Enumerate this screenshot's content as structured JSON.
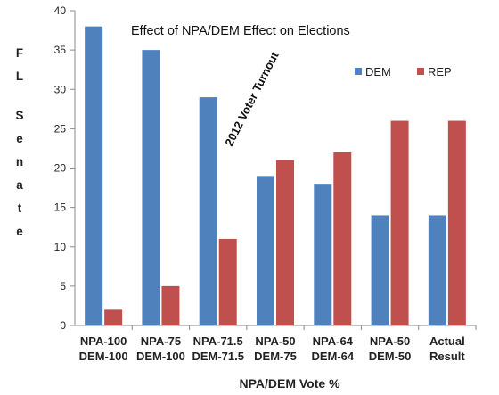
{
  "chart_data": {
    "type": "bar",
    "title": "Effect of NPA/DEM Effect on Elections",
    "xlabel": "NPA/DEM Vote %",
    "ylabel": "FL Senate",
    "ylim": [
      0,
      40
    ],
    "yticks": [
      "0",
      "5",
      "10",
      "15",
      "20",
      "25",
      "30",
      "35",
      "40"
    ],
    "categories": [
      [
        "NPA-100",
        "DEM-100"
      ],
      [
        "NPA-75",
        "DEM-100"
      ],
      [
        "NPA-71.5",
        "DEM-71.5"
      ],
      [
        "NPA-50",
        "DEM-75"
      ],
      [
        "NPA-64",
        "DEM-64"
      ],
      [
        "NPA-50",
        "DEM-50"
      ],
      [
        "Actual",
        "Result"
      ]
    ],
    "series": [
      {
        "name": "DEM",
        "color": "#4f81bd",
        "values": [
          38,
          35,
          29,
          19,
          18,
          14,
          14
        ]
      },
      {
        "name": "REP",
        "color": "#c0504d",
        "values": [
          2,
          5,
          11,
          21,
          22,
          26,
          26
        ]
      }
    ],
    "annotation": "2012 Voter Turnout",
    "legend_position": "top-right",
    "grid": false
  }
}
